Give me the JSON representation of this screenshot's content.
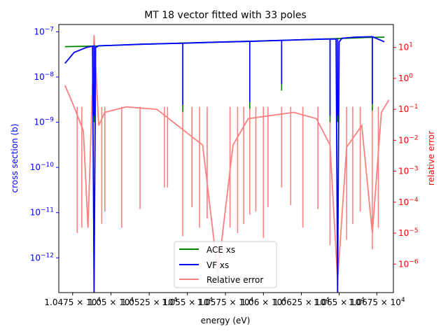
{
  "chart_data": {
    "type": "line",
    "title": "MT 18 vector fitted with 33 poles",
    "xlabel": "energy (eV)",
    "ylabel_left": "cross section (b)",
    "ylabel_right": "relative error",
    "x_scale": "log",
    "y_left_scale": "log",
    "y_right_scale": "log",
    "xlim": [
      10466,
      10686
    ],
    "ylim_left": [
      1.7e-13,
      1.45e-07
    ],
    "ylim_right": [
      1.2e-07,
      55
    ],
    "x_ticks": [
      {
        "value": 10475,
        "label": "1.0475 × 10^4"
      },
      {
        "value": 10500,
        "label": "1.05 × 10^4"
      },
      {
        "value": 10525,
        "label": "1.0525 × 10^4"
      },
      {
        "value": 10550,
        "label": "1.055 × 10^4"
      },
      {
        "value": 10575,
        "label": "1.0575 × 10^4"
      },
      {
        "value": 10600,
        "label": "1.06 × 10^4"
      },
      {
        "value": 10625,
        "label": "1.0625 × 10^4"
      },
      {
        "value": 10650,
        "label": "1.065 × 10^4"
      },
      {
        "value": 10675,
        "label": "1.0675 × 10^4"
      }
    ],
    "y_left_ticks": [
      {
        "value": 1e-12,
        "label": "10^-12"
      },
      {
        "value": 1e-11,
        "label": "10^-11"
      },
      {
        "value": 1e-10,
        "label": "10^-10"
      },
      {
        "value": 1e-09,
        "label": "10^-9"
      },
      {
        "value": 1e-08,
        "label": "10^-8"
      },
      {
        "value": 1e-07,
        "label": "10^-7"
      }
    ],
    "y_right_ticks": [
      {
        "value": 1e-06,
        "label": "10^-6"
      },
      {
        "value": 1e-05,
        "label": "10^-5"
      },
      {
        "value": 0.0001,
        "label": "10^-4"
      },
      {
        "value": 0.001,
        "label": "10^-3"
      },
      {
        "value": 0.01,
        "label": "10^-2"
      },
      {
        "value": 0.1,
        "label": "10^-1"
      },
      {
        "value": 1,
        "label": "10^0"
      },
      {
        "value": 10,
        "label": "10^1"
      }
    ],
    "legend_position": "lower-center",
    "colors": {
      "ace": "#008000",
      "vf": "#0000ff",
      "err": "#ff7f7f",
      "left_axis": "#0000ff",
      "right_axis": "#ff0000"
    },
    "series": [
      {
        "name": "ACE xs",
        "axis": "left",
        "x": [
          10470,
          10488,
          10500,
          10520,
          10545,
          10570,
          10595,
          10620,
          10640,
          10655,
          10668,
          10680
        ],
        "y": [
          4.7e-08,
          4.8e-08,
          5e-08,
          5.3e-08,
          5.6e-08,
          5.9e-08,
          6.2e-08,
          6.6e-08,
          6.9e-08,
          7.2e-08,
          7.5e-08,
          7.6e-08
        ]
      },
      {
        "name": "VF xs",
        "axis": "left",
        "x": [
          10470,
          10476,
          10484,
          10488,
          10489,
          10490,
          10492,
          10500,
          10520,
          10548,
          10570,
          10595,
          10620,
          10640,
          10648,
          10649,
          10650,
          10652,
          10660,
          10672,
          10680
        ],
        "y": [
          2e-08,
          3.5e-08,
          4.5e-08,
          4.8e-08,
          1.7e-13,
          4.5e-08,
          4.9e-08,
          5e-08,
          5.3e-08,
          5.6e-08,
          5.9e-08,
          6.2e-08,
          6.6e-08,
          6.9e-08,
          6.9e-08,
          1.7e-13,
          6e-08,
          7.2e-08,
          7.6e-08,
          7.8e-08,
          6e-08
        ]
      },
      {
        "name": "Relative error",
        "axis": "right",
        "x": [
          10470,
          10476,
          10482,
          10485,
          10489,
          10492,
          10496,
          10510,
          10530,
          10560,
          10570,
          10580,
          10590,
          10620,
          10635,
          10644,
          10649,
          10655,
          10665,
          10672,
          10678,
          10683
        ],
        "y": [
          0.6,
          0.12,
          0.02,
          1.5e-05,
          25,
          0.03,
          0.08,
          0.12,
          0.1,
          0.007,
          5e-07,
          0.007,
          0.05,
          0.08,
          0.05,
          0.007,
          3e-07,
          0.006,
          0.03,
          1e-05,
          0.08,
          0.2
        ]
      }
    ],
    "resonance_dips": [
      10489,
      10547,
      10591,
      10612,
      10644,
      10649,
      10672
    ],
    "error_spikes": [
      {
        "x": 10478,
        "y": 1e-05
      },
      {
        "x": 10481,
        "y": 1.5e-05
      },
      {
        "x": 10494,
        "y": 2e-05
      },
      {
        "x": 10496,
        "y": 5e-05
      },
      {
        "x": 10507,
        "y": 1.5e-05
      },
      {
        "x": 10519,
        "y": 6e-05
      },
      {
        "x": 10535,
        "y": 0.0003
      },
      {
        "x": 10537,
        "y": 0.0003
      },
      {
        "x": 10547,
        "y": 8e-06
      },
      {
        "x": 10553,
        "y": 7e-05
      },
      {
        "x": 10558,
        "y": 1.5e-05
      },
      {
        "x": 10563,
        "y": 3e-05
      },
      {
        "x": 10578,
        "y": 1.5e-05
      },
      {
        "x": 10583,
        "y": 1e-05
      },
      {
        "x": 10587,
        "y": 2e-05
      },
      {
        "x": 10591,
        "y": 4e-05
      },
      {
        "x": 10595,
        "y": 5e-05
      },
      {
        "x": 10600,
        "y": 7e-06
      },
      {
        "x": 10603,
        "y": 7e-05
      },
      {
        "x": 10612,
        "y": 0.0003
      },
      {
        "x": 10618,
        "y": 8e-05
      },
      {
        "x": 10626,
        "y": 1.5e-05
      },
      {
        "x": 10636,
        "y": 6e-05
      },
      {
        "x": 10644,
        "y": 4e-06
      },
      {
        "x": 10655,
        "y": 6e-06
      },
      {
        "x": 10659,
        "y": 2e-05
      },
      {
        "x": 10664,
        "y": 5e-05
      },
      {
        "x": 10672,
        "y": 3e-06
      },
      {
        "x": 10676,
        "y": 1.5e-05
      }
    ]
  }
}
